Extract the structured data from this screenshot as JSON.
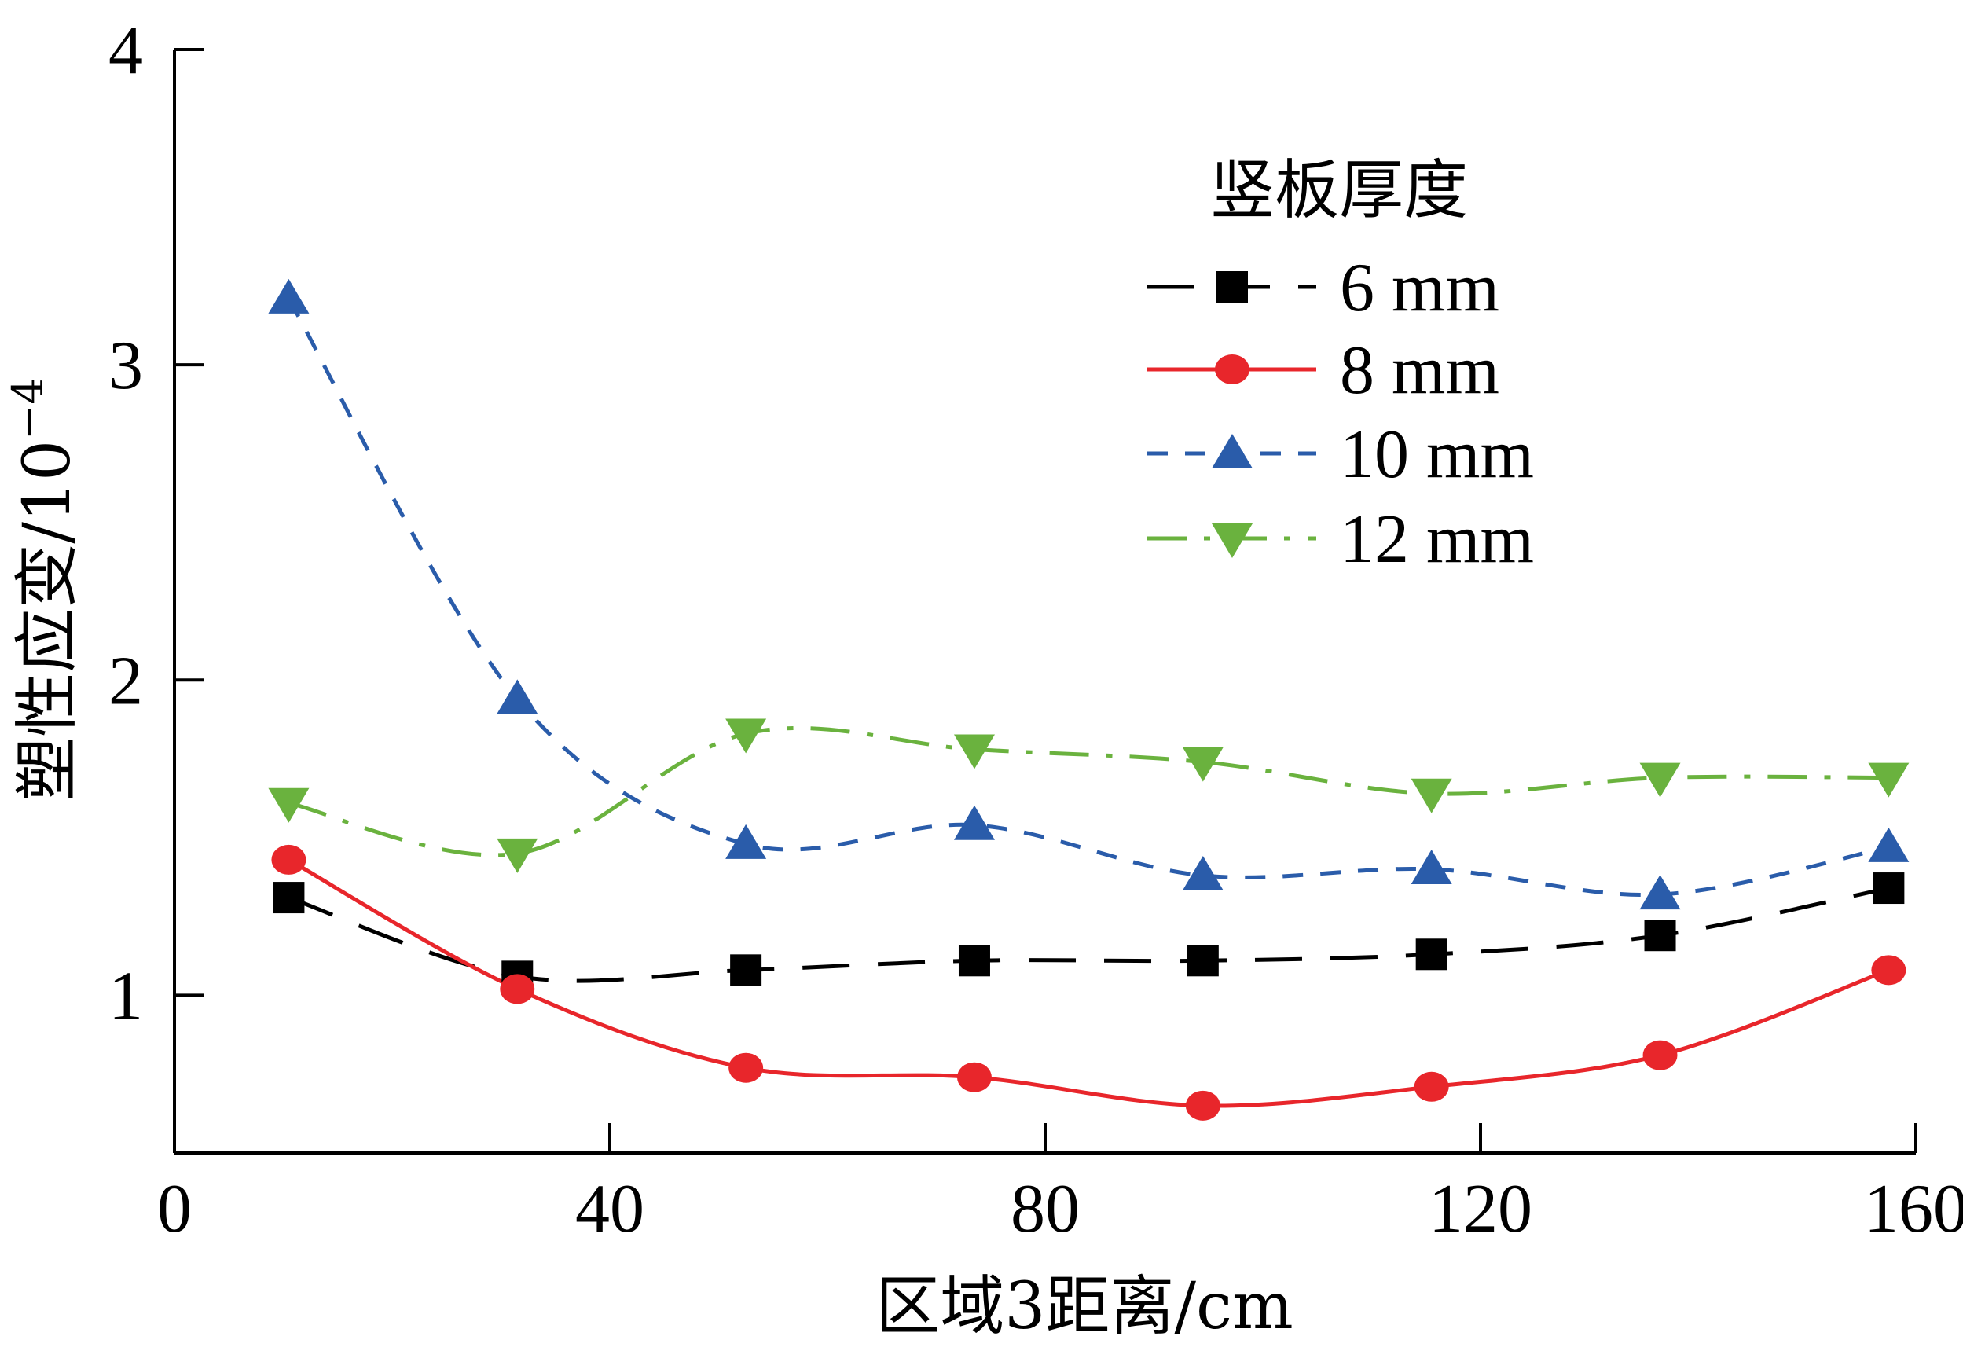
{
  "chart_data": {
    "type": "line",
    "xlabel": "区域3距离/cm",
    "ylabel": "塑性应变/10",
    "ylabel_exponent": "−4",
    "xlim": [
      0,
      160
    ],
    "ylim": [
      0.5,
      4
    ],
    "xticks": [
      0,
      40,
      80,
      120,
      160
    ],
    "yticks": [
      1,
      2,
      3,
      4
    ],
    "grid": false,
    "legend_title": "竖板厚度",
    "legend_position": "top-right",
    "x": [
      10.5,
      31.5,
      52.5,
      73.5,
      94.5,
      115.5,
      136.5,
      157.5
    ],
    "series": [
      {
        "name": "6 mm",
        "color": "#000000",
        "marker": "square",
        "dash": "dashed",
        "values": [
          1.31,
          1.06,
          1.08,
          1.11,
          1.11,
          1.13,
          1.19,
          1.34
        ]
      },
      {
        "name": "8 mm",
        "color": "#e8262b",
        "marker": "circle",
        "dash": "solid",
        "values": [
          1.43,
          1.02,
          0.77,
          0.74,
          0.65,
          0.71,
          0.81,
          1.08
        ]
      },
      {
        "name": "10 mm",
        "color": "#2a5caa",
        "marker": "triangle-up",
        "dash": "short-dash",
        "values": [
          3.21,
          1.94,
          1.48,
          1.54,
          1.38,
          1.4,
          1.32,
          1.47
        ]
      },
      {
        "name": "12 mm",
        "color": "#6ab23e",
        "marker": "triangle-down",
        "dash": "dash-dot",
        "values": [
          1.61,
          1.45,
          1.83,
          1.78,
          1.74,
          1.64,
          1.69,
          1.69
        ]
      }
    ]
  }
}
